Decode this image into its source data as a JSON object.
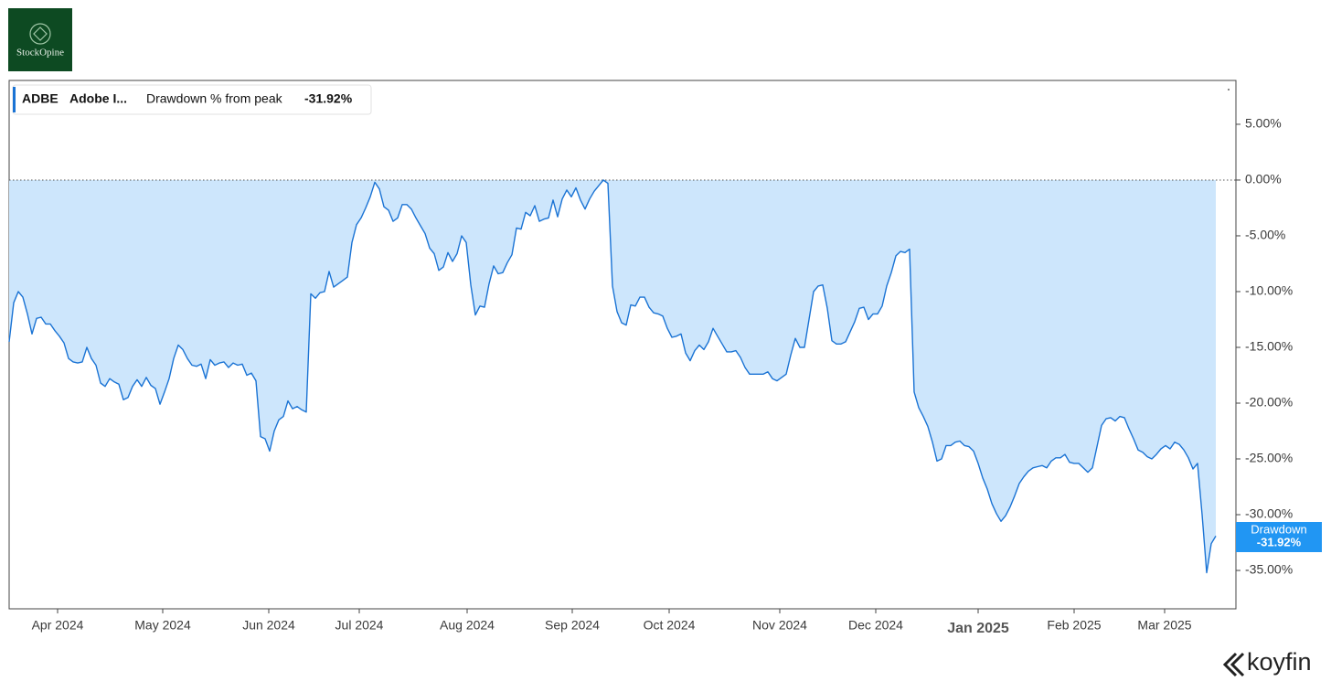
{
  "brand": "StockOpine",
  "footer_brand": "koyfin",
  "chart_data": {
    "type": "area",
    "legend": {
      "ticker": "ADBE",
      "name": "Adobe I...",
      "metric": "Drawdown % from peak"
    },
    "last_value_label": "-31.92%",
    "series": [
      {
        "name": "Drawdown",
        "color": "#1a73d4",
        "fill": "#cde6fc",
        "values": [
          -14.5,
          -11,
          -10,
          -10.5,
          -12,
          -13.8,
          -12.4,
          -12.3,
          -12.9,
          -12.9,
          -13.5,
          -14,
          -14.6,
          -16,
          -16.3,
          -16.4,
          -16.3,
          -15,
          -16,
          -16.6,
          -18.2,
          -18.5,
          -17.8,
          -18.1,
          -18.3,
          -19.7,
          -19.5,
          -18.5,
          -17.9,
          -18.5,
          -17.7,
          -18.4,
          -18.7,
          -20.1,
          -19,
          -17.8,
          -16,
          -14.8,
          -15.2,
          -16,
          -16.6,
          -16.7,
          -16.5,
          -17.8,
          -16.1,
          -16.6,
          -16.4,
          -16.3,
          -16.8,
          -16.4,
          -16.6,
          -16.5,
          -17.5,
          -17.3,
          -18,
          -23,
          -23.2,
          -24.3,
          -22.5,
          -21.5,
          -21.2,
          -19.8,
          -20.5,
          -20.3,
          -20.6,
          -20.8,
          -10.2,
          -10.6,
          -10.1,
          -10,
          -8.2,
          -9.6,
          -9.3,
          -9,
          -8.7,
          -5.6,
          -4,
          -3.4,
          -2.5,
          -1.5,
          -0.2,
          -0.8,
          -2.4,
          -2.7,
          -3.7,
          -3.4,
          -2.2,
          -2.2,
          -2.6,
          -3.4,
          -4.1,
          -4.8,
          -6.1,
          -6.6,
          -8.1,
          -7.8,
          -6.5,
          -7.3,
          -6.6,
          -5,
          -5.6,
          -9.4,
          -12.1,
          -11.3,
          -11.4,
          -9.3,
          -7.7,
          -8.4,
          -8.3,
          -7.4,
          -6.7,
          -4.3,
          -4.4,
          -2.9,
          -3.2,
          -2.3,
          -3.7,
          -3.5,
          -3.4,
          -1.8,
          -3.3,
          -1.7,
          -0.9,
          -1.5,
          -0.7,
          -1.8,
          -2.6,
          -1.7,
          -1,
          -0.5,
          0,
          -0.3,
          -9.5,
          -11.8,
          -12.8,
          -13,
          -11.2,
          -11.3,
          -10.5,
          -10.5,
          -11.4,
          -11.9,
          -12,
          -12.2,
          -13.3,
          -14.1,
          -14,
          -13.8,
          -15.5,
          -16.2,
          -15.3,
          -14.8,
          -15.2,
          -14.5,
          -13.3,
          -14,
          -14.7,
          -15.4,
          -15.4,
          -15.3,
          -15.9,
          -16.8,
          -17.4,
          -17.4,
          -17.4,
          -17.4,
          -17.2,
          -17.8,
          -18,
          -17.7,
          -17.4,
          -15.7,
          -14.2,
          -15,
          -15,
          -12.5,
          -10,
          -9.5,
          -9.4,
          -11.5,
          -14.4,
          -14.7,
          -14.7,
          -14.5,
          -13.6,
          -12.7,
          -11.5,
          -11.4,
          -12.5,
          -12,
          -12,
          -11.3,
          -9.5,
          -8.3,
          -6.8,
          -6.4,
          -6.5,
          -6.2,
          -19,
          -20.4,
          -21.2,
          -22.1,
          -23.5,
          -25.2,
          -25,
          -23.8,
          -23.8,
          -23.5,
          -23.4,
          -23.8,
          -23.9,
          -24.3,
          -25.4,
          -26.7,
          -27.7,
          -29,
          -29.9,
          -30.6,
          -30.1,
          -29.3,
          -28.3,
          -27.2,
          -26.6,
          -26.1,
          -25.8,
          -25.7,
          -25.6,
          -25.8,
          -25.2,
          -24.9,
          -24.9,
          -24.6,
          -25.3,
          -25.4,
          -25.4,
          -25.8,
          -26.2,
          -25.8,
          -23.9,
          -22,
          -21.4,
          -21.3,
          -21.6,
          -21.2,
          -21.3,
          -22.3,
          -23.2,
          -24.2,
          -24.4,
          -24.8,
          -25,
          -24.6,
          -24.1,
          -23.8,
          -24.1,
          -23.5,
          -23.7,
          -24.2,
          -24.9,
          -25.9,
          -25.4,
          -30,
          -35.2,
          -32.6,
          -31.92
        ]
      }
    ],
    "xlim": [
      0,
      268.4
    ],
    "xticks": [
      {
        "value": 10.6,
        "label": "Apr 2024"
      },
      {
        "value": 33.6,
        "label": "May 2024"
      },
      {
        "value": 56.8,
        "label": "Jun 2024"
      },
      {
        "value": 76.6,
        "label": "Jul 2024"
      },
      {
        "value": 100.2,
        "label": "Aug 2024"
      },
      {
        "value": 123.2,
        "label": "Sep 2024"
      },
      {
        "value": 144.4,
        "label": "Oct 2024"
      },
      {
        "value": 168.6,
        "label": "Nov 2024"
      },
      {
        "value": 189.6,
        "label": "Dec 2024"
      },
      {
        "value": 212,
        "label": "Jan 2025",
        "major": true
      },
      {
        "value": 233,
        "label": "Feb 2025"
      },
      {
        "value": 252.8,
        "label": "Mar 2025"
      }
    ],
    "ylim": [
      -38.44,
      8.93
    ],
    "yticks": [
      {
        "value": 5,
        "label": "5.00%"
      },
      {
        "value": 0,
        "label": "0.00%"
      },
      {
        "value": -5,
        "label": "-5.00%"
      },
      {
        "value": -10,
        "label": "-10.00%"
      },
      {
        "value": -15,
        "label": "-15.00%"
      },
      {
        "value": -20,
        "label": "-20.00%"
      },
      {
        "value": -25,
        "label": "-25.00%"
      },
      {
        "value": -30,
        "label": "-30.00%"
      },
      {
        "value": -35,
        "label": "-35.00%"
      }
    ],
    "axis_side": "right",
    "zero_line": "dotted"
  }
}
